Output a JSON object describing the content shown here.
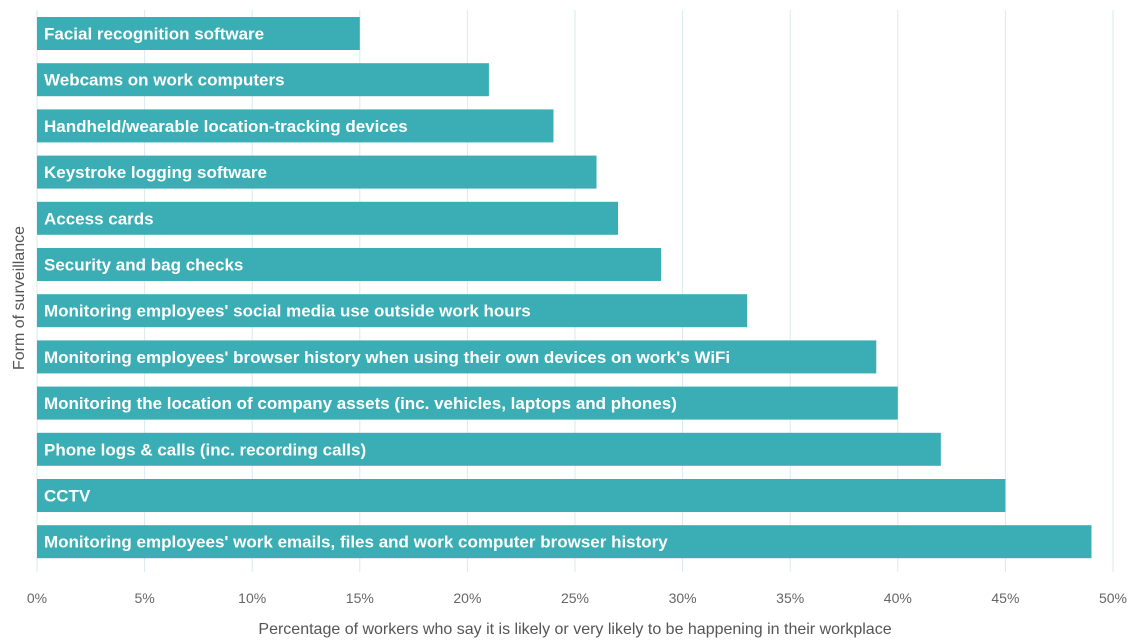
{
  "chart_data": {
    "type": "bar",
    "orientation": "horizontal",
    "categories": [
      "Facial recognition software",
      "Webcams on work computers",
      "Handheld/wearable location-tracking devices",
      "Keystroke logging software",
      "Access cards",
      "Security and bag checks",
      "Monitoring employees' social media use outside work hours",
      "Monitoring employees' browser history when using their own devices on work's WiFi",
      "Monitoring the location of company assets (inc. vehicles, laptops and phones)",
      "Phone logs & calls (inc. recording calls)",
      "CCTV",
      "Monitoring employees' work emails, files and work computer browser history"
    ],
    "values": [
      15,
      21,
      24,
      26,
      27,
      29,
      33,
      39,
      40,
      42,
      45,
      49
    ],
    "xlabel": "Percentage of workers who say it is likely or very likely to be happening in their workplace",
    "ylabel": "Form of surveillance",
    "xlim": [
      0,
      50
    ],
    "xticks": [
      "0%",
      "5%",
      "10%",
      "15%",
      "20%",
      "25%",
      "30%",
      "35%",
      "40%",
      "45%",
      "50%"
    ],
    "grid": true,
    "colors": {
      "bar": "#3aaeb4",
      "grid": "#dbe9ee",
      "text": "#666666"
    }
  }
}
